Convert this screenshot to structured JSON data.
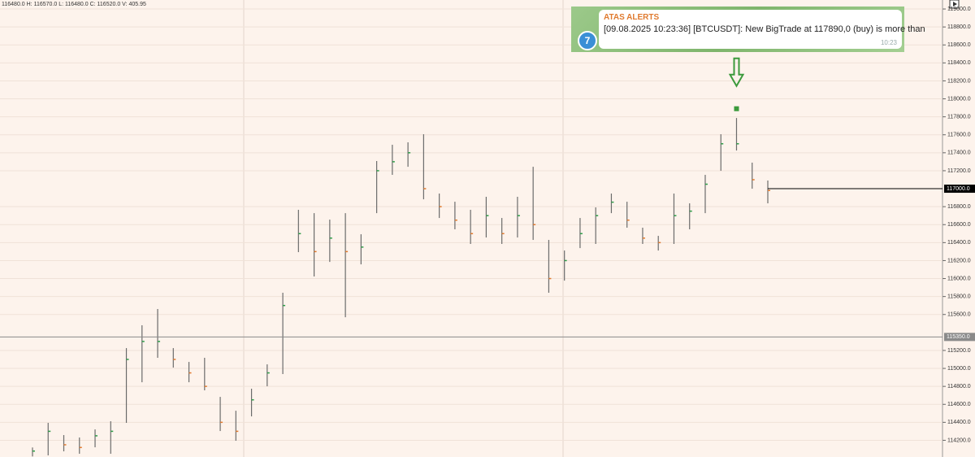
{
  "chart_data": {
    "type": "ohlc",
    "info": "116480.0 H: 116570.0 L: 116480.0 C: 116520.0 V: 405.95",
    "high": [
      114120,
      114394,
      114258,
      114231,
      114321,
      114412,
      115226,
      115480,
      115661,
      115226,
      115072,
      115118,
      114683,
      114529,
      114774,
      115045,
      115842,
      116765,
      116728,
      116656,
      116728,
      116493,
      117308,
      117489,
      117516,
      117606,
      116946,
      116855,
      116765,
      116910,
      116674,
      116910,
      117244,
      116430,
      116312,
      116674,
      116792,
      116946,
      116855,
      116566,
      116475,
      116946,
      116837,
      117154,
      117606,
      117787,
      117290,
      117091
    ],
    "low": [
      114020,
      114032,
      114077,
      114050,
      114122,
      114050,
      114394,
      114846,
      115118,
      115009,
      114846,
      114756,
      114303,
      114195,
      114466,
      114801,
      114937,
      116294,
      116023,
      116185,
      115570,
      116158,
      116728,
      117154,
      117244,
      116882,
      116674,
      116548,
      116385,
      116457,
      116385,
      116457,
      116430,
      115842,
      115977,
      116339,
      116385,
      116728,
      116566,
      116385,
      116312,
      116385,
      116548,
      116728,
      117199,
      117425,
      117000,
      116837
    ],
    "close": [
      114080,
      114300,
      114150,
      114120,
      114250,
      114300,
      115100,
      115300,
      115300,
      115100,
      114950,
      114800,
      114400,
      114300,
      114650,
      114950,
      115700,
      116500,
      116300,
      116450,
      116300,
      116350,
      117200,
      117300,
      117400,
      117000,
      116800,
      116650,
      116500,
      116700,
      116500,
      116700,
      116600,
      116000,
      116200,
      116500,
      116700,
      116850,
      116650,
      116450,
      116400,
      116700,
      116750,
      117050,
      117500,
      117500,
      117100,
      116980
    ],
    "bar_color": "#6b6b6b",
    "up_color": "#2e9c48",
    "down_color": "#e07a2f",
    "ylim": [
      114014,
      119100
    ],
    "yticks": [
      {
        "value": 114200,
        "label": "114200.0"
      },
      {
        "value": 114400,
        "label": "114400.0"
      },
      {
        "value": 114600,
        "label": "114600.0"
      },
      {
        "value": 114800,
        "label": "114800.0"
      },
      {
        "value": 115000,
        "label": "115000.0"
      },
      {
        "value": 115200,
        "label": "115200.0"
      },
      {
        "value": 115600,
        "label": "115600.0"
      },
      {
        "value": 115800,
        "label": "115800.0"
      },
      {
        "value": 116000,
        "label": "116000.0"
      },
      {
        "value": 116200,
        "label": "116200.0"
      },
      {
        "value": 116400,
        "label": "116400.0"
      },
      {
        "value": 116600,
        "label": "116600.0"
      },
      {
        "value": 116800,
        "label": "116800.0"
      },
      {
        "value": 117200,
        "label": "117200.0"
      },
      {
        "value": 117400,
        "label": "117400.0"
      },
      {
        "value": 117600,
        "label": "117600.0"
      },
      {
        "value": 117800,
        "label": "117800.0"
      },
      {
        "value": 118000,
        "label": "118000.0"
      },
      {
        "value": 118200,
        "label": "118200.0"
      },
      {
        "value": 118400,
        "label": "118400.0"
      },
      {
        "value": 118600,
        "label": "118600.0"
      },
      {
        "value": 118800,
        "label": "118800.0"
      },
      {
        "value": 119000,
        "label": "119000.0"
      }
    ],
    "grid": true,
    "price_lines": [
      {
        "value": 117000,
        "label": "117000.0",
        "color": "#000000"
      },
      {
        "value": 115350,
        "label": "115350.0",
        "color": "#8a8a8a"
      }
    ],
    "big_trade": {
      "value": 117890,
      "color": "#3c9a3c"
    },
    "alert": {
      "title": "ATAS ALERTS",
      "message": "[09.08.2025 10:23:36] [BTCUSDT]: New BigTrade at 117890,0 (buy) is more than",
      "time": "10:23"
    }
  }
}
